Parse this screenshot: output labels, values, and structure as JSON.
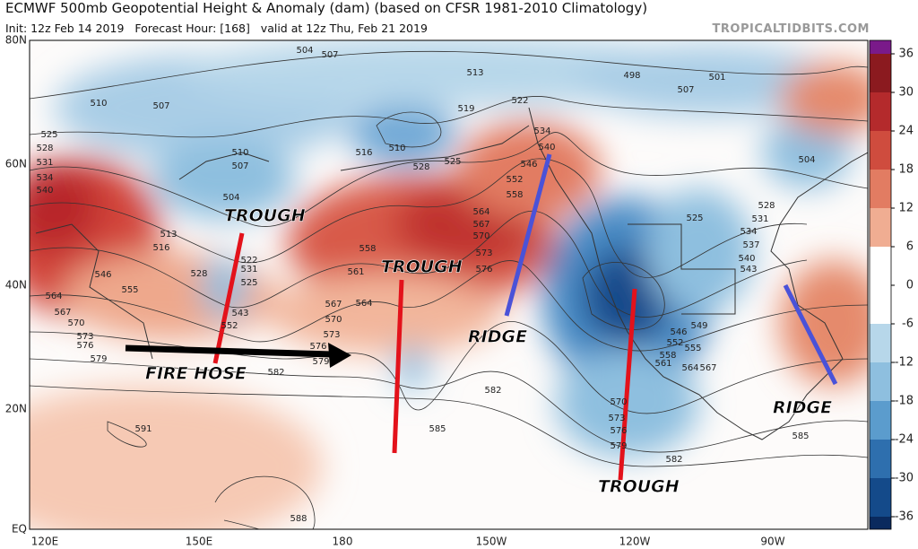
{
  "header": {
    "title": "ECMWF 500mb Geopotential Height & Anomaly (dam) (based on CFSR 1981-2010 Climatology)",
    "init": "Init: 12z Feb 14 2019   Forecast Hour: [168]   valid at 12z Thu, Feb 21 2019",
    "watermark": "TROPICALTIDBITS.COM"
  },
  "map": {
    "lat_labels": [
      "80N",
      "60N",
      "40N",
      "20N",
      "EQ"
    ],
    "lon_labels": [
      "120E",
      "150E",
      "180",
      "150W",
      "120W",
      "90W"
    ]
  },
  "colorbar": {
    "ticks": [
      36,
      30,
      24,
      18,
      12,
      6,
      0,
      -6,
      -12,
      -18,
      -24,
      -30,
      -36
    ]
  },
  "annotations": [
    "TROUGH",
    "TROUGH",
    "RIDGE",
    "FIRE HOSE",
    "TROUGH",
    "RIDGE"
  ],
  "contour_labels": [
    "504",
    "507",
    "513",
    "498",
    "501",
    "507",
    "510",
    "507",
    "519",
    "525",
    "528",
    "531",
    "534",
    "540",
    "510",
    "507",
    "504",
    "513",
    "516",
    "510",
    "516",
    "528",
    "525",
    "522",
    "534",
    "540",
    "546",
    "552",
    "558",
    "564",
    "567",
    "570",
    "573",
    "576",
    "528",
    "531",
    "525",
    "522",
    "543",
    "552",
    "546",
    "555",
    "564",
    "567",
    "570",
    "573",
    "576",
    "579",
    "582",
    "558",
    "561",
    "564",
    "567",
    "570",
    "573",
    "576",
    "579",
    "582",
    "585",
    "591",
    "588",
    "585",
    "582",
    "570",
    "573",
    "576",
    "579",
    "546",
    "549",
    "552",
    "555",
    "558",
    "561",
    "564",
    "567",
    "525",
    "528",
    "531",
    "534",
    "537",
    "540",
    "543",
    "504"
  ]
}
